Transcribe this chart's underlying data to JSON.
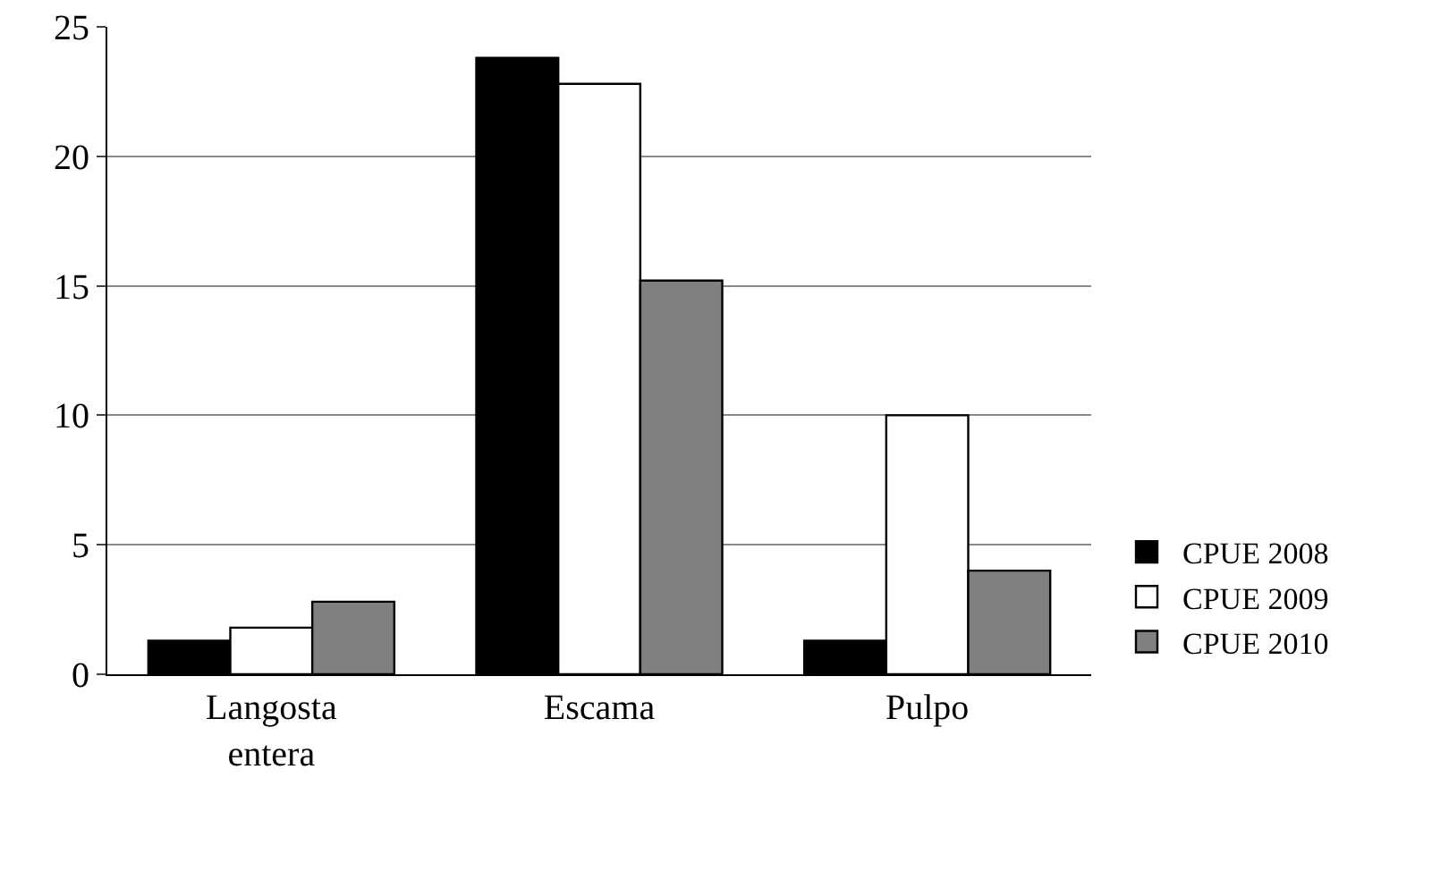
{
  "chart_data": {
    "type": "bar",
    "categories": [
      "Langosta entera",
      "Escama",
      "Pulpo"
    ],
    "series": [
      {
        "name": "CPUE 2008",
        "color": "#000000",
        "values": [
          1.3,
          23.8,
          1.3
        ]
      },
      {
        "name": "CPUE 2009",
        "color": "#ffffff",
        "values": [
          1.8,
          22.8,
          10
        ]
      },
      {
        "name": "CPUE 2010",
        "color": "#808080",
        "values": [
          2.8,
          15.2,
          4
        ]
      }
    ],
    "ylim": [
      0,
      25
    ],
    "yticks": [
      0,
      5,
      10,
      15,
      20,
      25
    ],
    "grid": "y",
    "legend": "bottom right"
  }
}
